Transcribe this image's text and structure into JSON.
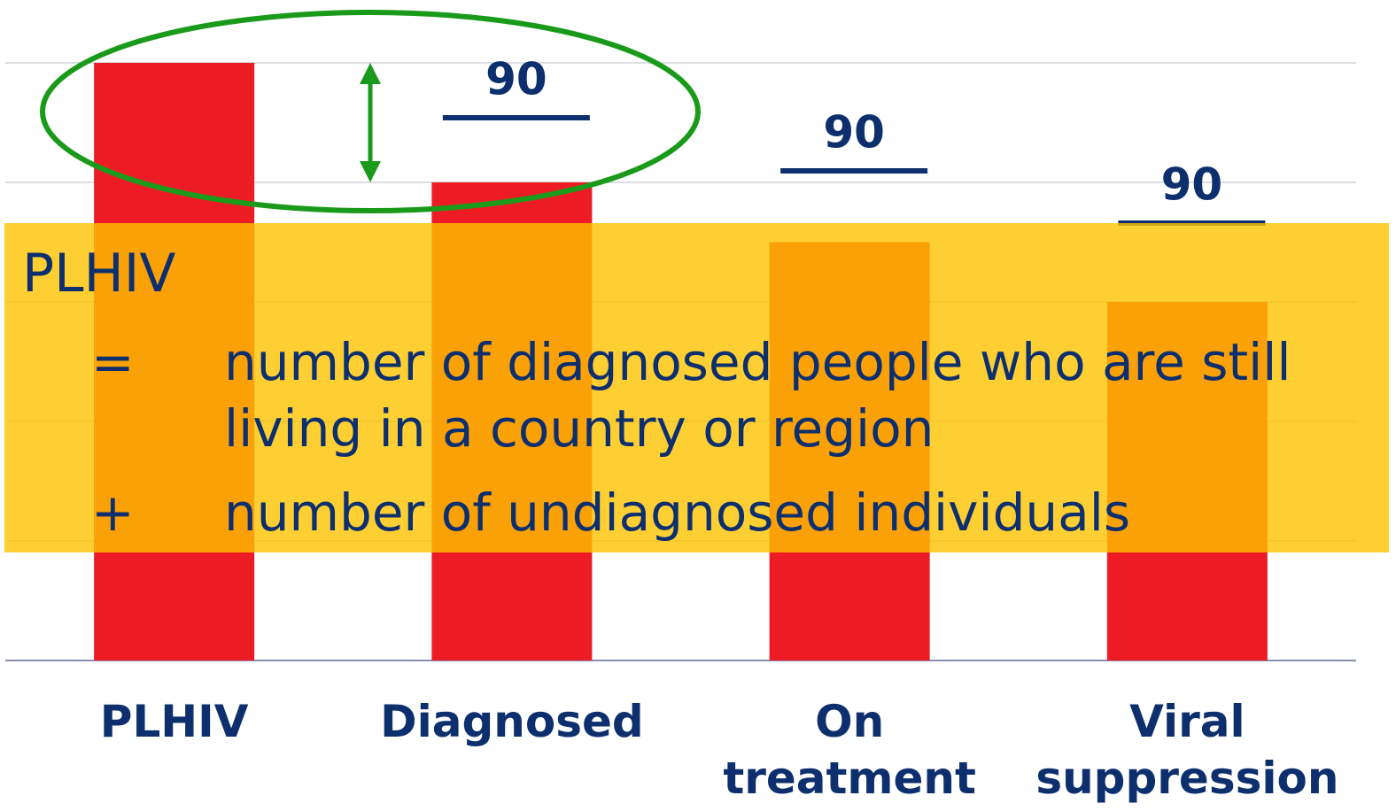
{
  "chart_data": {
    "type": "bar",
    "categories": [
      "PLHIV",
      "Diagnosed",
      "On treatment",
      "Viral suppression"
    ],
    "values": [
      100,
      80,
      70,
      60
    ],
    "color": "#ed1c24",
    "ylim": [
      0,
      100
    ],
    "yticks": [
      0,
      20,
      40,
      60,
      80,
      100
    ],
    "grid": true,
    "annotations": [
      "90",
      "90",
      "90"
    ]
  },
  "definition": {
    "term": "PLHIV",
    "items": [
      {
        "symbol": "=",
        "text": "number of diagnosed people who are still living in a country or region"
      },
      {
        "symbol": "+",
        "text": "number of undiagnosed individuals"
      }
    ]
  }
}
